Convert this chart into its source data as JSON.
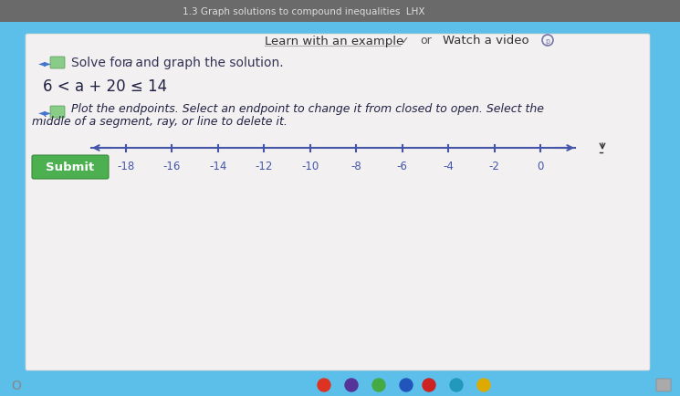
{
  "bg_color": "#5bbfea",
  "panel_color": "#f0eeee",
  "title_bar_color": "#5bbfea",
  "top_bar_color": "#888888",
  "title_text": "1.3 Graph solutions to compound inequalities  LHX",
  "inequality": "6 < a + 20 ≤ 14",
  "number_line_ticks": [
    -18,
    -16,
    -14,
    -12,
    -10,
    -8,
    -6,
    -4,
    -2,
    0
  ],
  "number_line_min": -19.5,
  "number_line_max": 1.5,
  "submit_text": "Submit",
  "submit_color": "#4caf50",
  "submit_text_color": "#ffffff",
  "line_color": "#4455aa",
  "tick_color": "#4455aa",
  "label_color": "#4455aa",
  "text_color": "#333355",
  "bottom_bar_color": "#e0dede"
}
